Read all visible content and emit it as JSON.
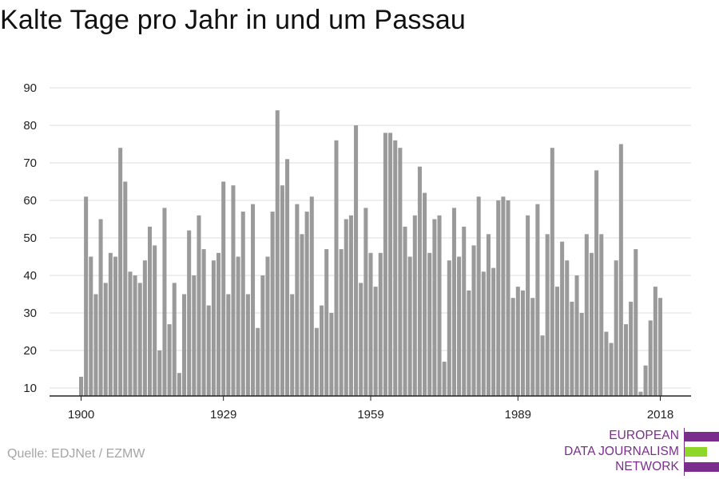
{
  "header": {
    "title": "Kalte Tage pro Jahr in und um Passau"
  },
  "footer": {
    "source": "Quelle: EDJNet / EZMW"
  },
  "logo": {
    "lines": [
      "EUROPEAN",
      "DATA JOURNALISM",
      "NETWORK"
    ],
    "colors": {
      "purple": "#7a2d8c",
      "green": "#8fd62a"
    }
  },
  "colors": {
    "bar": "#9a9a9a",
    "grid": "#dddddd",
    "axis": "#222222",
    "text": "#222222"
  },
  "chart_data": {
    "type": "bar",
    "title": "Kalte Tage pro Jahr in und um Passau",
    "xlabel": "",
    "ylabel": "",
    "x_tick_labels": [
      "1900",
      "1929",
      "1959",
      "1989",
      "2018"
    ],
    "y_ticks": [
      10,
      20,
      30,
      40,
      50,
      60,
      70,
      80,
      90
    ],
    "ylim": [
      7,
      92
    ],
    "grid": true,
    "x": [
      1900,
      1901,
      1902,
      1903,
      1904,
      1905,
      1906,
      1907,
      1908,
      1909,
      1910,
      1911,
      1912,
      1913,
      1914,
      1915,
      1916,
      1917,
      1918,
      1919,
      1920,
      1921,
      1922,
      1923,
      1924,
      1925,
      1926,
      1927,
      1928,
      1929,
      1930,
      1931,
      1932,
      1933,
      1934,
      1935,
      1936,
      1937,
      1938,
      1939,
      1940,
      1941,
      1942,
      1943,
      1944,
      1945,
      1946,
      1947,
      1948,
      1949,
      1950,
      1951,
      1952,
      1953,
      1954,
      1955,
      1956,
      1957,
      1958,
      1959,
      1960,
      1961,
      1962,
      1963,
      1964,
      1965,
      1966,
      1967,
      1968,
      1969,
      1970,
      1971,
      1972,
      1973,
      1974,
      1975,
      1976,
      1977,
      1978,
      1979,
      1980,
      1981,
      1982,
      1983,
      1984,
      1985,
      1986,
      1987,
      1988,
      1989,
      1990,
      1991,
      1992,
      1993,
      1994,
      1995,
      1996,
      1997,
      1998,
      1999,
      2000,
      2001,
      2002,
      2003,
      2004,
      2005,
      2006,
      2007,
      2008,
      2009,
      2010,
      2011,
      2012,
      2013,
      2014,
      2015,
      2016,
      2017,
      2018
    ],
    "values": [
      13,
      61,
      45,
      35,
      55,
      38,
      46,
      45,
      74,
      65,
      41,
      40,
      38,
      44,
      53,
      48,
      20,
      58,
      27,
      38,
      14,
      35,
      52,
      40,
      56,
      47,
      32,
      44,
      46,
      65,
      35,
      64,
      45,
      57,
      35,
      59,
      26,
      40,
      45,
      57,
      84,
      64,
      71,
      35,
      59,
      51,
      57,
      61,
      26,
      32,
      47,
      30,
      76,
      47,
      55,
      56,
      80,
      38,
      58,
      46,
      37,
      46,
      78,
      78,
      76,
      74,
      53,
      45,
      56,
      69,
      62,
      46,
      55,
      56,
      17,
      44,
      58,
      45,
      53,
      36,
      48,
      61,
      41,
      51,
      42,
      60,
      61,
      60,
      34,
      37,
      36,
      56,
      34,
      59,
      24,
      51,
      74,
      37,
      49,
      44,
      33,
      40,
      30,
      51,
      46,
      68,
      51,
      25,
      22,
      44,
      75,
      27,
      33,
      47,
      9,
      16,
      28,
      37,
      34
    ]
  }
}
